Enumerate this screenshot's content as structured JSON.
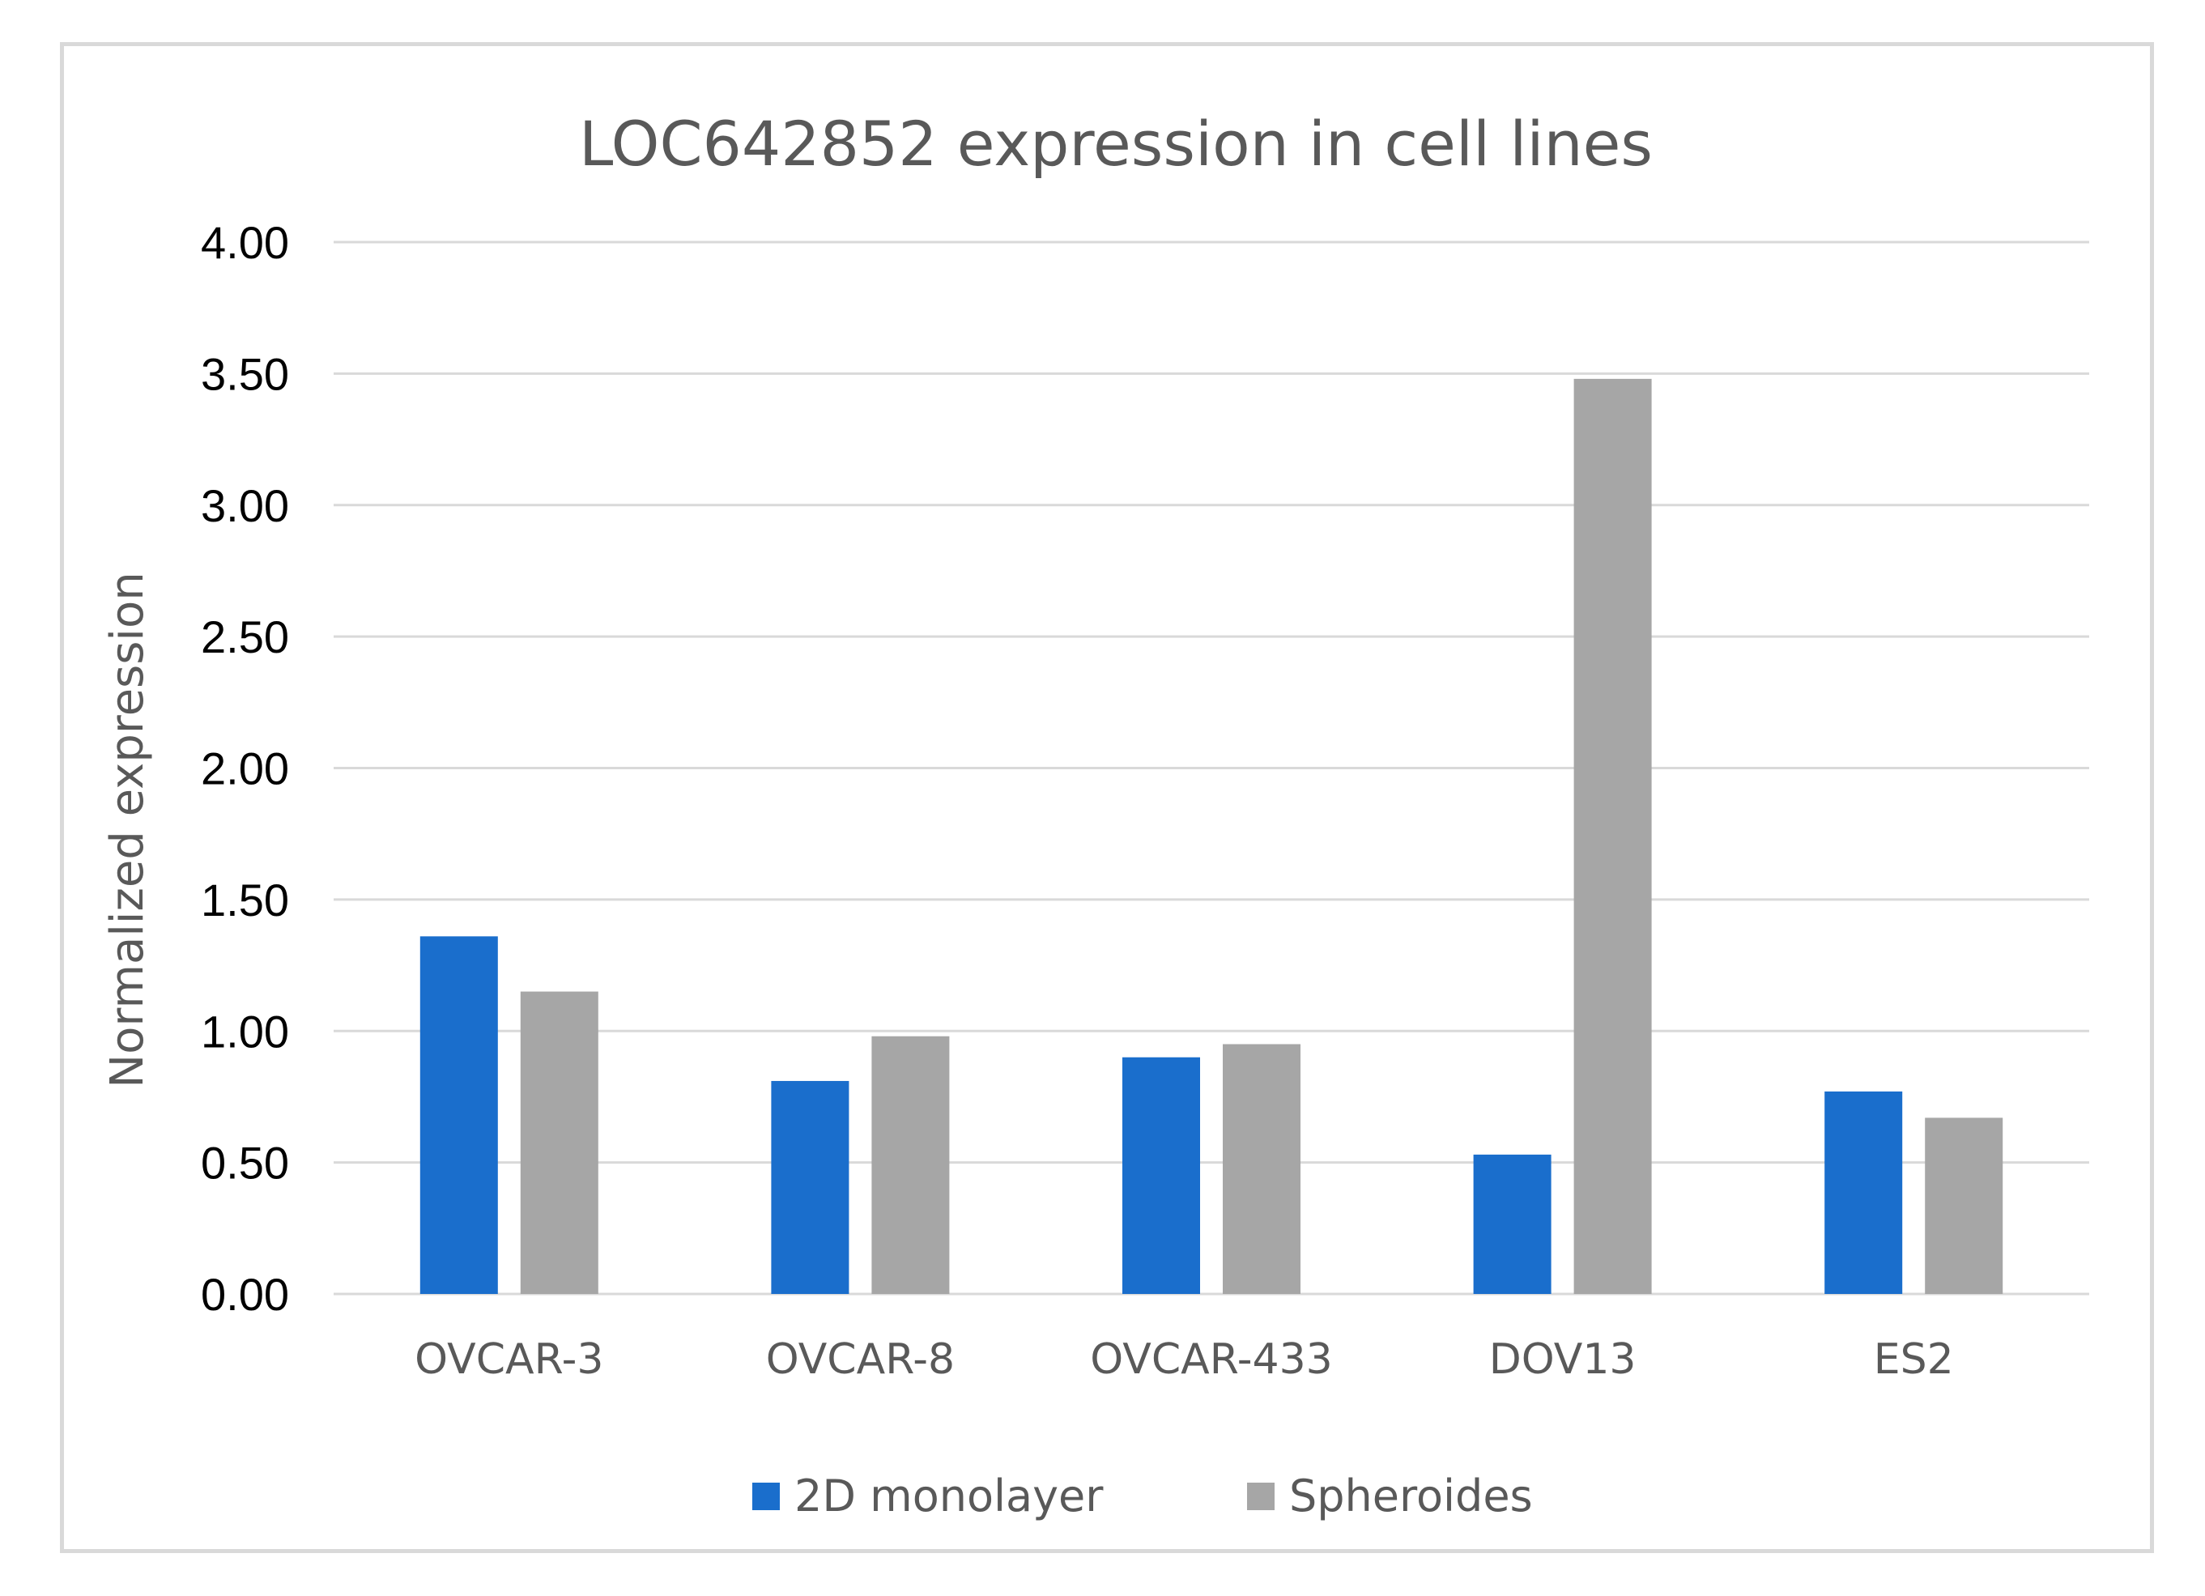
{
  "chart_data": {
    "type": "bar",
    "title": "LOC642852 expression in cell lines",
    "xlabel": "",
    "ylabel": "Normalized expression",
    "ylim": [
      0,
      4
    ],
    "yticks": [
      "0.00",
      "0.50",
      "1.00",
      "1.50",
      "2.00",
      "2.50",
      "3.00",
      "3.50",
      "4.00"
    ],
    "grid": true,
    "legend_position": "bottom",
    "categories": [
      "OVCAR-3",
      "OVCAR-8",
      "OVCAR-433",
      "DOV13",
      "ES2"
    ],
    "series": [
      {
        "name": "2D monolayer",
        "color": "#1a6ecc",
        "values": [
          1.36,
          0.81,
          0.9,
          0.53,
          0.77
        ]
      },
      {
        "name": "Spheroides",
        "color": "#a6a6a6",
        "values": [
          1.15,
          0.98,
          0.95,
          3.48,
          0.67
        ]
      }
    ]
  }
}
